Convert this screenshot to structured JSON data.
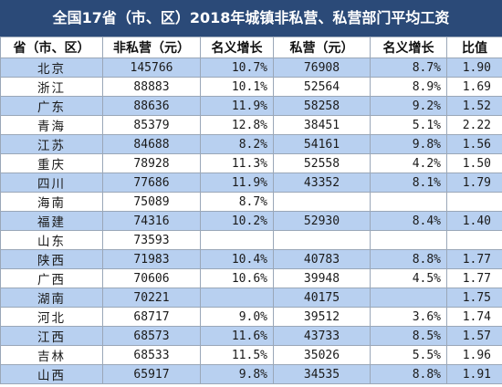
{
  "title": "全国17省（市、区）2018年城镇非私营、私营部门平均工资",
  "headers": [
    "省（市、区）",
    "非私营（元）",
    "名义增长",
    "私营（元）",
    "名义增长",
    "比值"
  ],
  "rows": [
    [
      "北京",
      "145766",
      "10.7%",
      "76908",
      "8.7%",
      "1.90"
    ],
    [
      "浙江",
      "88883",
      "10.1%",
      "52564",
      "8.9%",
      "1.69"
    ],
    [
      "广东",
      "88636",
      "11.9%",
      "58258",
      "9.2%",
      "1.52"
    ],
    [
      "青海",
      "85379",
      "12.8%",
      "38451",
      "5.1%",
      "2.22"
    ],
    [
      "江苏",
      "84688",
      "8.2%",
      "54161",
      "9.8%",
      "1.56"
    ],
    [
      "重庆",
      "78928",
      "11.3%",
      "52558",
      "4.2%",
      "1.50"
    ],
    [
      "四川",
      "77686",
      "11.9%",
      "43352",
      "8.1%",
      "1.79"
    ],
    [
      "海南",
      "75089",
      "8.7%",
      "",
      "",
      ""
    ],
    [
      "福建",
      "74316",
      "10.2%",
      "52930",
      "8.4%",
      "1.40"
    ],
    [
      "山东",
      "73593",
      "",
      "",
      "",
      ""
    ],
    [
      "陕西",
      "71983",
      "10.4%",
      "40783",
      "8.8%",
      "1.77"
    ],
    [
      "广西",
      "70606",
      "10.6%",
      "39948",
      "4.5%",
      "1.77"
    ],
    [
      "湖南",
      "70221",
      "",
      "40175",
      "",
      "1.75"
    ],
    [
      "河北",
      "68717",
      "9.0%",
      "39512",
      "3.6%",
      "1.74"
    ],
    [
      "江西",
      "68573",
      "11.6%",
      "43733",
      "8.5%",
      "1.57"
    ],
    [
      "吉林",
      "68533",
      "11.5%",
      "35026",
      "5.5%",
      "1.96"
    ],
    [
      "山西",
      "65917",
      "9.8%",
      "34535",
      "8.8%",
      "1.91"
    ]
  ],
  "colors": {
    "title_bg": "#2b4a78",
    "row_blue": "#b8d0f0",
    "row_white": "#ffffff",
    "grid": "#9aa7b8"
  }
}
